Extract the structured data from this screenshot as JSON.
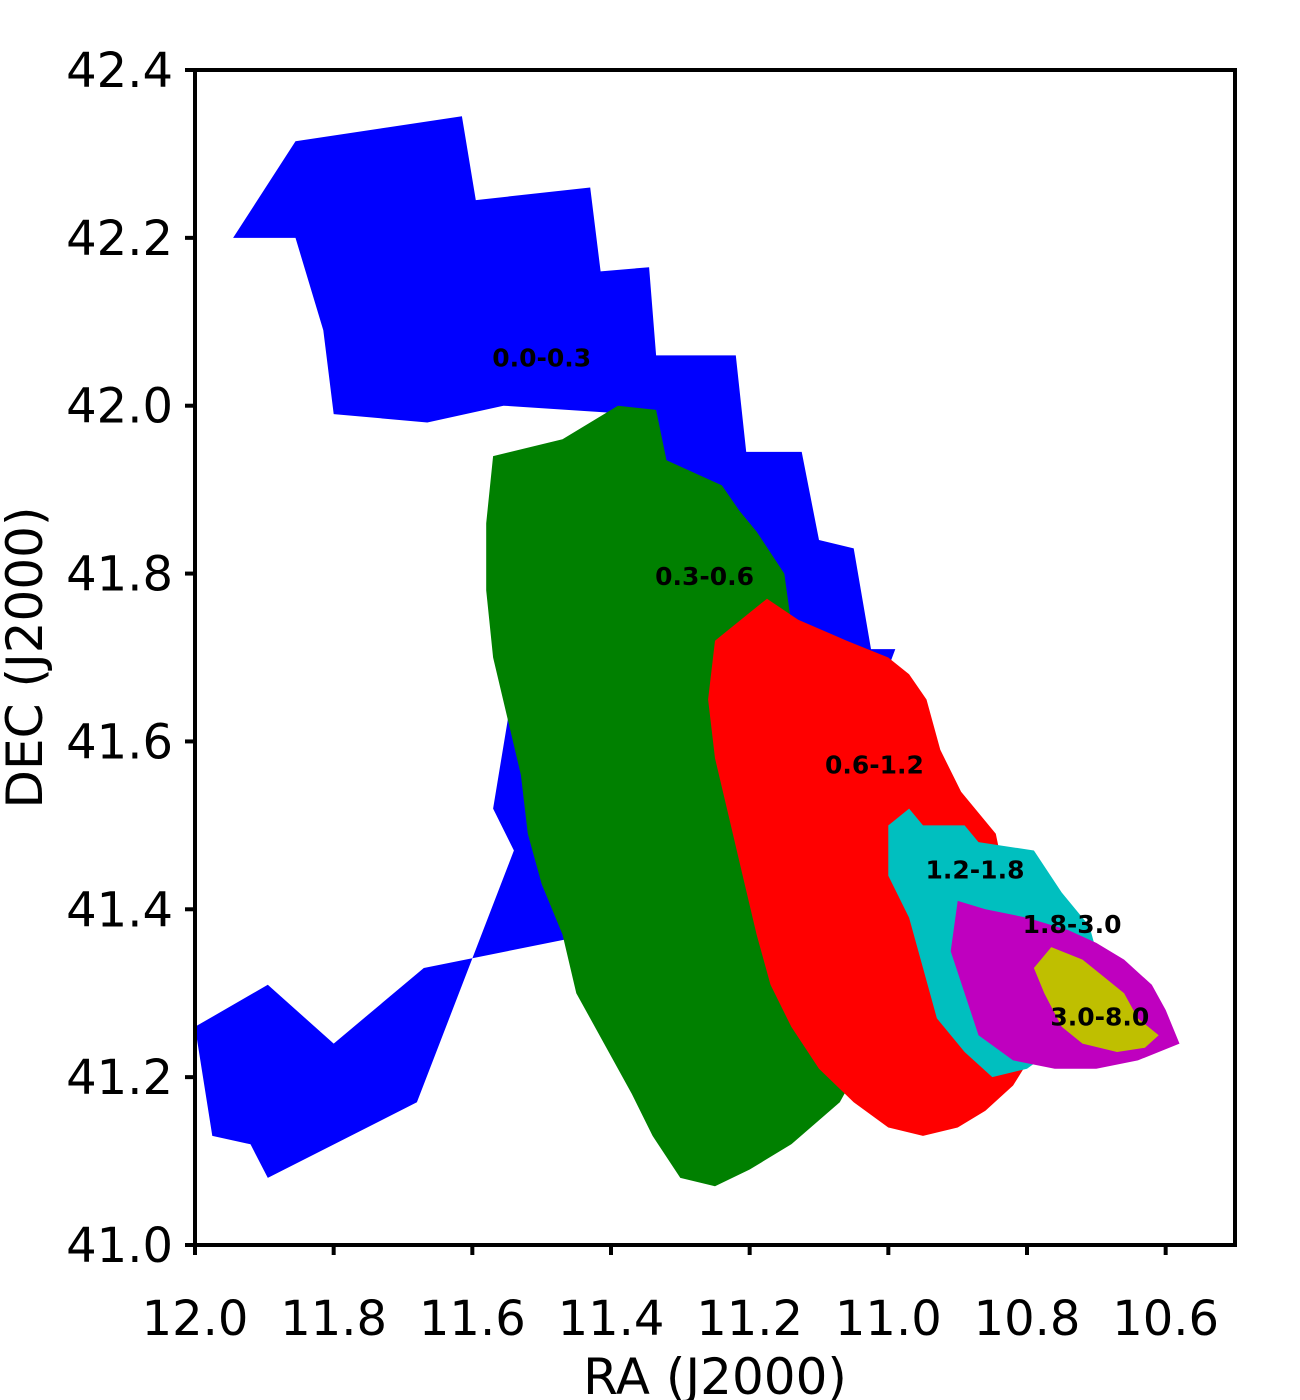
{
  "chart_data": {
    "type": "region-map",
    "xlabel": "RA (J2000)",
    "ylabel": "DEC (J2000)",
    "xlim": [
      12.0,
      10.5
    ],
    "ylim": [
      41.0,
      42.4
    ],
    "x_inverted": true,
    "xticks": [
      "12.0",
      "11.8",
      "11.6",
      "11.4",
      "11.2",
      "11.0",
      "10.8",
      "10.6"
    ],
    "yticks": [
      "41.0",
      "41.2",
      "41.4",
      "41.6",
      "41.8",
      "42.0",
      "42.2",
      "42.4"
    ],
    "grid": false,
    "regions": [
      {
        "label": "0.0-0.3",
        "color": "#0000ff",
        "label_at": [
          11.5,
          42.055
        ],
        "polygon": [
          [
            11.855,
            42.315
          ],
          [
            11.615,
            42.345
          ],
          [
            11.595,
            42.245
          ],
          [
            11.43,
            42.26
          ],
          [
            11.415,
            42.16
          ],
          [
            11.345,
            42.165
          ],
          [
            11.335,
            42.06
          ],
          [
            11.22,
            42.06
          ],
          [
            11.205,
            41.945
          ],
          [
            11.125,
            41.945
          ],
          [
            11.1,
            41.84
          ],
          [
            11.05,
            41.83
          ],
          [
            11.025,
            41.71
          ],
          [
            10.99,
            41.71
          ],
          [
            11.04,
            41.6
          ],
          [
            11.29,
            41.4
          ],
          [
            11.43,
            41.37
          ],
          [
            11.67,
            41.33
          ],
          [
            11.8,
            41.24
          ],
          [
            11.895,
            41.31
          ],
          [
            12.0,
            41.26
          ],
          [
            11.975,
            41.13
          ],
          [
            11.92,
            41.12
          ],
          [
            11.895,
            41.08
          ],
          [
            11.68,
            41.17
          ],
          [
            11.54,
            41.47
          ],
          [
            11.57,
            41.52
          ],
          [
            11.51,
            41.82
          ],
          [
            11.47,
            41.86
          ],
          [
            11.42,
            41.88
          ],
          [
            11.37,
            41.99
          ],
          [
            11.555,
            42.0
          ],
          [
            11.665,
            41.98
          ],
          [
            11.8,
            41.99
          ],
          [
            11.815,
            42.09
          ],
          [
            11.855,
            42.2
          ],
          [
            11.945,
            42.2
          ]
        ]
      },
      {
        "label": "0.3-0.6",
        "color": "#008000",
        "label_at": [
          11.265,
          41.795
        ],
        "polygon": [
          [
            11.39,
            42.0
          ],
          [
            11.335,
            41.995
          ],
          [
            11.32,
            41.935
          ],
          [
            11.24,
            41.905
          ],
          [
            11.215,
            41.875
          ],
          [
            11.19,
            41.85
          ],
          [
            11.15,
            41.8
          ],
          [
            11.14,
            41.74
          ],
          [
            11.115,
            41.705
          ],
          [
            11.08,
            41.69
          ],
          [
            11.03,
            41.66
          ],
          [
            11.0,
            41.62
          ],
          [
            10.96,
            41.58
          ],
          [
            10.95,
            41.55
          ],
          [
            10.9,
            41.5
          ],
          [
            10.88,
            41.45
          ],
          [
            10.96,
            41.38
          ],
          [
            10.99,
            41.32
          ],
          [
            11.03,
            41.23
          ],
          [
            11.07,
            41.17
          ],
          [
            11.14,
            41.12
          ],
          [
            11.2,
            41.09
          ],
          [
            11.25,
            41.07
          ],
          [
            11.3,
            41.08
          ],
          [
            11.34,
            41.13
          ],
          [
            11.37,
            41.18
          ],
          [
            11.41,
            41.24
          ],
          [
            11.45,
            41.3
          ],
          [
            11.47,
            41.37
          ],
          [
            11.5,
            41.43
          ],
          [
            11.52,
            41.49
          ],
          [
            11.53,
            41.56
          ],
          [
            11.55,
            41.63
          ],
          [
            11.57,
            41.7
          ],
          [
            11.58,
            41.78
          ],
          [
            11.58,
            41.86
          ],
          [
            11.57,
            41.94
          ],
          [
            11.47,
            41.96
          ]
        ]
      },
      {
        "label": "0.6-1.2",
        "color": "#ff0000",
        "label_at": [
          11.02,
          41.57
        ],
        "polygon": [
          [
            11.175,
            41.77
          ],
          [
            11.13,
            41.745
          ],
          [
            11.06,
            41.72
          ],
          [
            11.0,
            41.7
          ],
          [
            10.97,
            41.68
          ],
          [
            10.945,
            41.65
          ],
          [
            10.925,
            41.59
          ],
          [
            10.895,
            41.54
          ],
          [
            10.845,
            41.49
          ],
          [
            10.83,
            41.43
          ],
          [
            10.8,
            41.38
          ],
          [
            10.78,
            41.33
          ],
          [
            10.78,
            41.28
          ],
          [
            10.79,
            41.23
          ],
          [
            10.82,
            41.19
          ],
          [
            10.86,
            41.16
          ],
          [
            10.9,
            41.14
          ],
          [
            10.95,
            41.13
          ],
          [
            11.0,
            41.14
          ],
          [
            11.05,
            41.17
          ],
          [
            11.1,
            41.21
          ],
          [
            11.14,
            41.26
          ],
          [
            11.17,
            41.31
          ],
          [
            11.19,
            41.37
          ],
          [
            11.21,
            41.44
          ],
          [
            11.23,
            41.51
          ],
          [
            11.25,
            41.58
          ],
          [
            11.26,
            41.65
          ],
          [
            11.25,
            41.72
          ]
        ]
      },
      {
        "label": "1.2-1.8",
        "color": "#00bfbf",
        "label_at": [
          10.875,
          41.445
        ],
        "polygon": [
          [
            10.97,
            41.52
          ],
          [
            10.95,
            41.5
          ],
          [
            10.89,
            41.5
          ],
          [
            10.87,
            41.48
          ],
          [
            10.79,
            41.47
          ],
          [
            10.75,
            41.42
          ],
          [
            10.71,
            41.38
          ],
          [
            10.69,
            41.32
          ],
          [
            10.72,
            41.28
          ],
          [
            10.75,
            41.24
          ],
          [
            10.8,
            41.21
          ],
          [
            10.85,
            41.2
          ],
          [
            10.89,
            41.23
          ],
          [
            10.93,
            41.27
          ],
          [
            10.95,
            41.33
          ],
          [
            10.97,
            41.39
          ],
          [
            11.0,
            41.44
          ],
          [
            11.0,
            41.5
          ]
        ]
      },
      {
        "label": "1.8-3.0",
        "color": "#bf00bf",
        "label_at": [
          10.735,
          41.38
        ],
        "polygon": [
          [
            10.9,
            41.41
          ],
          [
            10.86,
            41.4
          ],
          [
            10.8,
            41.39
          ],
          [
            10.74,
            41.375
          ],
          [
            10.7,
            41.36
          ],
          [
            10.66,
            41.34
          ],
          [
            10.62,
            41.31
          ],
          [
            10.6,
            41.28
          ],
          [
            10.58,
            41.24
          ],
          [
            10.64,
            41.22
          ],
          [
            10.7,
            41.21
          ],
          [
            10.76,
            41.21
          ],
          [
            10.82,
            41.22
          ],
          [
            10.87,
            41.25
          ],
          [
            10.89,
            41.3
          ],
          [
            10.91,
            41.35
          ]
        ]
      },
      {
        "label": "3.0-8.0",
        "color": "#bfbf00",
        "label_at": [
          10.695,
          41.27
        ],
        "polygon": [
          [
            10.765,
            41.355
          ],
          [
            10.72,
            41.34
          ],
          [
            10.69,
            41.32
          ],
          [
            10.66,
            41.3
          ],
          [
            10.64,
            41.27
          ],
          [
            10.61,
            41.25
          ],
          [
            10.63,
            41.235
          ],
          [
            10.67,
            41.23
          ],
          [
            10.72,
            41.24
          ],
          [
            10.75,
            41.26
          ],
          [
            10.775,
            41.3
          ],
          [
            10.79,
            41.33
          ]
        ]
      }
    ]
  }
}
